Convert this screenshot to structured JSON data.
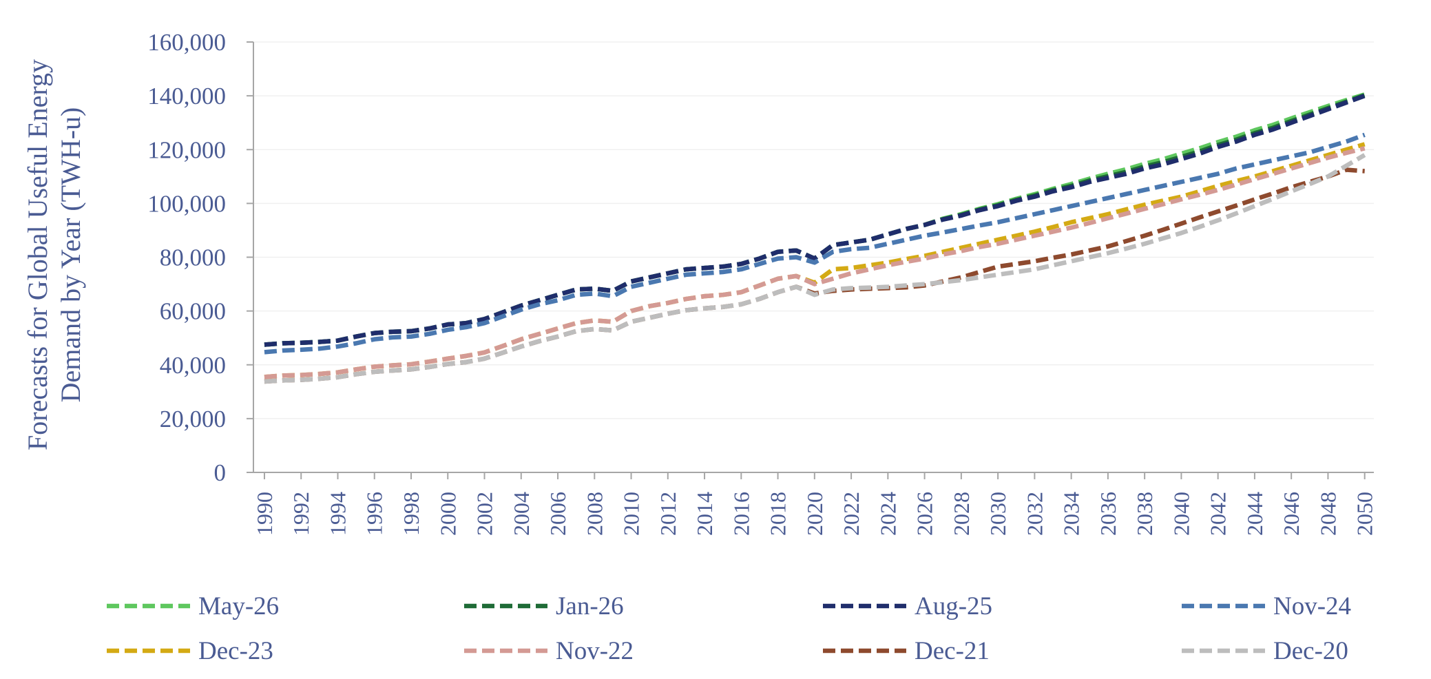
{
  "chart_data": {
    "type": "line",
    "y_label": [
      "Forecasts for Global Useful Energy",
      "Demand by Year (TWH-u)"
    ],
    "x": [
      1990,
      1991,
      1992,
      1993,
      1994,
      1995,
      1996,
      1997,
      1998,
      1999,
      2000,
      2001,
      2002,
      2003,
      2004,
      2005,
      2006,
      2007,
      2008,
      2009,
      2010,
      2011,
      2012,
      2013,
      2014,
      2015,
      2016,
      2017,
      2018,
      2019,
      2020,
      2021,
      2022,
      2023,
      2024,
      2025,
      2026,
      2027,
      2028,
      2029,
      2030,
      2031,
      2032,
      2033,
      2034,
      2035,
      2036,
      2037,
      2038,
      2039,
      2040,
      2041,
      2042,
      2043,
      2044,
      2045,
      2046,
      2047,
      2048,
      2049,
      2050
    ],
    "xlim": [
      1989.4,
      2050.5
    ],
    "xticks": [
      1990,
      1992,
      1994,
      1996,
      1998,
      2000,
      2002,
      2004,
      2006,
      2008,
      2010,
      2012,
      2014,
      2016,
      2018,
      2020,
      2022,
      2024,
      2026,
      2028,
      2030,
      2032,
      2034,
      2036,
      2038,
      2040,
      2042,
      2044,
      2046,
      2048,
      2050
    ],
    "ylim": [
      0,
      160000
    ],
    "yticks": [
      0,
      {
        "value": 20000,
        "label": "20,000"
      },
      {
        "value": 40000,
        "label": "40,000"
      },
      {
        "value": 60000,
        "label": "60,000"
      },
      {
        "value": 80000,
        "label": "80,000"
      },
      {
        "value": 100000,
        "label": "100,000"
      },
      {
        "value": 120000,
        "label": "120,000"
      },
      {
        "value": 140000,
        "label": "140,000"
      },
      {
        "value": 160000,
        "label": "160,000"
      }
    ],
    "grid": true,
    "legend": "bottom",
    "series": [
      {
        "name": "May-26",
        "color": "#5ec75e",
        "values": [
          47500,
          48000,
          48200,
          48500,
          49000,
          50500,
          51800,
          52300,
          52500,
          53500,
          55000,
          55500,
          57000,
          59500,
          62000,
          64000,
          66000,
          68000,
          68300,
          67500,
          71000,
          72500,
          74000,
          75500,
          76000,
          76500,
          77500,
          79500,
          82000,
          82500,
          79500,
          84500,
          85500,
          86500,
          88500,
          90500,
          92000,
          94300,
          96000,
          98000,
          99700,
          101700,
          103400,
          105400,
          107200,
          109200,
          111000,
          112700,
          114700,
          116400,
          118500,
          120500,
          122800,
          124800,
          127200,
          129200,
          131600,
          133900,
          136200,
          138400,
          140500
        ]
      },
      {
        "name": "Jan-26",
        "color": "#1e6b36",
        "values": [
          47500,
          48000,
          48200,
          48500,
          49000,
          50500,
          51800,
          52300,
          52500,
          53500,
          55000,
          55500,
          57000,
          59500,
          62000,
          64000,
          66000,
          68000,
          68300,
          67500,
          71000,
          72500,
          74000,
          75500,
          76000,
          76500,
          77500,
          79500,
          82000,
          82500,
          79500,
          84500,
          85500,
          86500,
          88500,
          90500,
          92000,
          94100,
          95700,
          97700,
          99300,
          101300,
          102900,
          104900,
          106500,
          108500,
          110100,
          111700,
          113700,
          115300,
          117300,
          119300,
          121700,
          123700,
          126100,
          128100,
          130600,
          133000,
          135400,
          137800,
          140200
        ]
      },
      {
        "name": "Aug-25",
        "color": "#1f2d6b",
        "values": [
          47500,
          48000,
          48200,
          48500,
          49000,
          50500,
          51800,
          52300,
          52500,
          53500,
          55000,
          55500,
          57000,
          59500,
          62000,
          64000,
          66000,
          68000,
          68300,
          67500,
          71000,
          72500,
          74000,
          75500,
          76000,
          76500,
          77500,
          79500,
          82000,
          82500,
          79500,
          84500,
          85500,
          86500,
          88500,
          90500,
          92000,
          94000,
          95500,
          97500,
          99000,
          101000,
          102500,
          104500,
          106000,
          108000,
          109500,
          111000,
          113000,
          114500,
          116500,
          118500,
          121000,
          123000,
          125500,
          127500,
          130000,
          132500,
          135000,
          137500,
          140000
        ]
      },
      {
        "name": "Nov-24",
        "color": "#4a78b0",
        "values": [
          44700,
          45300,
          45600,
          46000,
          46800,
          48000,
          49500,
          50200,
          50500,
          51500,
          53000,
          54000,
          55500,
          58000,
          60500,
          62500,
          64000,
          66000,
          66500,
          65500,
          69000,
          70500,
          72000,
          73500,
          74000,
          74500,
          75500,
          77500,
          79500,
          80000,
          78000,
          82000,
          83000,
          83500,
          85000,
          86500,
          88000,
          89200,
          90500,
          91800,
          93000,
          94500,
          96000,
          97500,
          99000,
          100500,
          102000,
          103500,
          105000,
          106500,
          108000,
          109500,
          111000,
          113000,
          114500,
          116000,
          117500,
          119000,
          121000,
          123000,
          125500
        ]
      },
      {
        "name": "Dec-23",
        "color": "#d4aa14",
        "values": [
          35500,
          36000,
          36200,
          36600,
          37200,
          38300,
          39300,
          39800,
          40200,
          41200,
          42300,
          43300,
          44600,
          47000,
          49500,
          51500,
          53500,
          55500,
          56500,
          56000,
          60000,
          61800,
          63000,
          64500,
          65500,
          66000,
          67000,
          69500,
          72000,
          73000,
          70500,
          75500,
          76000,
          77000,
          78000,
          79300,
          80500,
          82000,
          83500,
          85000,
          86500,
          88000,
          89500,
          91200,
          93000,
          94500,
          96000,
          97800,
          99500,
          101000,
          102500,
          104500,
          106500,
          108300,
          110000,
          112000,
          114000,
          116000,
          118000,
          120000,
          122000
        ]
      },
      {
        "name": "Nov-22",
        "color": "#d49a94",
        "values": [
          35500,
          36000,
          36200,
          36600,
          37200,
          38300,
          39300,
          39800,
          40200,
          41200,
          42300,
          43300,
          44600,
          47000,
          49500,
          51500,
          53500,
          55500,
          56500,
          56000,
          60000,
          61800,
          63000,
          64500,
          65500,
          66000,
          67000,
          69500,
          72000,
          73000,
          70000,
          72000,
          74000,
          75500,
          77000,
          78300,
          79500,
          81000,
          82300,
          83800,
          85000,
          86500,
          88000,
          89500,
          91000,
          92700,
          94500,
          96200,
          98000,
          99700,
          101500,
          103200,
          105000,
          107000,
          109000,
          111000,
          113000,
          115000,
          117000,
          118800,
          120500
        ]
      },
      {
        "name": "Dec-21",
        "color": "#8e4a2e",
        "values": [
          33800,
          34200,
          34400,
          34800,
          35400,
          36500,
          37400,
          37900,
          38300,
          39200,
          40300,
          41000,
          42300,
          44500,
          46800,
          48800,
          50500,
          52500,
          53300,
          52800,
          56000,
          57500,
          59000,
          60300,
          61000,
          61500,
          62500,
          64500,
          67000,
          69000,
          66500,
          67500,
          68000,
          68300,
          68500,
          68800,
          69500,
          71000,
          72500,
          74500,
          76500,
          77500,
          78500,
          79800,
          81000,
          82500,
          84000,
          86000,
          88000,
          90200,
          92500,
          94800,
          97000,
          99200,
          101500,
          103700,
          106000,
          108000,
          110000,
          112500,
          112000
        ]
      },
      {
        "name": "Dec-20",
        "color": "#bdbdbd",
        "values": [
          33800,
          34200,
          34400,
          34800,
          35400,
          36500,
          37400,
          37900,
          38300,
          39200,
          40300,
          41000,
          42300,
          44500,
          46800,
          48800,
          50500,
          52500,
          53300,
          52800,
          56000,
          57500,
          59000,
          60300,
          61000,
          61500,
          62500,
          64500,
          67000,
          69000,
          66000,
          68000,
          68500,
          68700,
          69000,
          69500,
          70000,
          70700,
          71500,
          72500,
          73500,
          74500,
          75500,
          77000,
          78500,
          80000,
          81500,
          83200,
          85000,
          87000,
          89000,
          91300,
          93700,
          96300,
          99000,
          101700,
          104500,
          107200,
          110000,
          114000,
          118000
        ]
      }
    ]
  }
}
